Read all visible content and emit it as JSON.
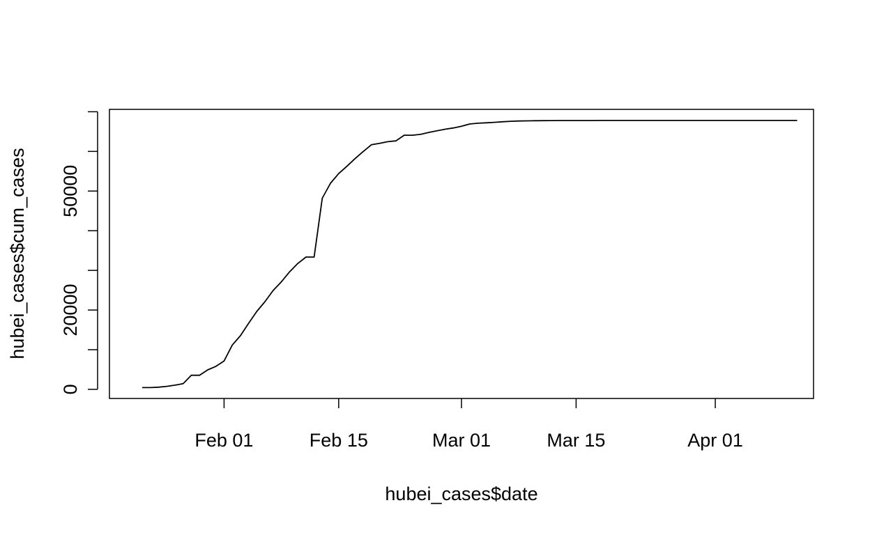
{
  "chart_data": {
    "type": "line",
    "title": "",
    "xlabel": "hubei_cases$date",
    "ylabel": "hubei_cases$cum_cases",
    "x_tick_labels": [
      "Feb 01",
      "Feb 15",
      "Mar 01",
      "Mar 15",
      "Apr 01"
    ],
    "y_tick_labels": [
      "0",
      "20000",
      "50000"
    ],
    "x_ticks": [
      "2020-02-01",
      "2020-02-15",
      "2020-03-01",
      "2020-03-15",
      "2020-04-01"
    ],
    "y_ticks": [
      0,
      10000,
      20000,
      30000,
      40000,
      50000,
      60000,
      70000
    ],
    "y_labeled_ticks": [
      0,
      20000,
      50000
    ],
    "xlim": [
      "2020-01-18",
      "2020-04-13"
    ],
    "ylim": [
      -2300,
      70600
    ],
    "grid": false,
    "line_color": "#000000",
    "series": [
      {
        "x": [
          "2020-01-22",
          "2020-01-23",
          "2020-01-24",
          "2020-01-25",
          "2020-01-26",
          "2020-01-27",
          "2020-01-28",
          "2020-01-29",
          "2020-01-30",
          "2020-01-31",
          "2020-02-01",
          "2020-02-02",
          "2020-02-03",
          "2020-02-04",
          "2020-02-05",
          "2020-02-06",
          "2020-02-07",
          "2020-02-08",
          "2020-02-09",
          "2020-02-10",
          "2020-02-11",
          "2020-02-12",
          "2020-02-13",
          "2020-02-14",
          "2020-02-15",
          "2020-02-16",
          "2020-02-17",
          "2020-02-18",
          "2020-02-19",
          "2020-02-20",
          "2020-02-21",
          "2020-02-22",
          "2020-02-23",
          "2020-02-24",
          "2020-02-25",
          "2020-02-26",
          "2020-02-27",
          "2020-02-28",
          "2020-02-29",
          "2020-03-01",
          "2020-03-02",
          "2020-03-03",
          "2020-03-04",
          "2020-03-05",
          "2020-03-06",
          "2020-03-07",
          "2020-03-08",
          "2020-03-09",
          "2020-03-10",
          "2020-03-11",
          "2020-03-12",
          "2020-03-13",
          "2020-03-14",
          "2020-03-15",
          "2020-03-16",
          "2020-03-17",
          "2020-03-18",
          "2020-03-19",
          "2020-03-20",
          "2020-03-21",
          "2020-03-22",
          "2020-03-23",
          "2020-03-24",
          "2020-03-25",
          "2020-03-26",
          "2020-03-27",
          "2020-03-28",
          "2020-03-29",
          "2020-03-30",
          "2020-03-31",
          "2020-04-01",
          "2020-04-02",
          "2020-04-03",
          "2020-04-04",
          "2020-04-05",
          "2020-04-06",
          "2020-04-07",
          "2020-04-08",
          "2020-04-09",
          "2020-04-10",
          "2020-04-11"
        ],
        "values": [
          444,
          444,
          549,
          761,
          1058,
          1423,
          3554,
          3554,
          4903,
          5806,
          7153,
          11177,
          13522,
          16678,
          19665,
          22112,
          24953,
          27100,
          29631,
          31728,
          33366,
          33366,
          48206,
          51986,
          54406,
          56249,
          58182,
          59989,
          61682,
          62031,
          62442,
          62662,
          64084,
          64084,
          64287,
          64786,
          65187,
          65596,
          65914,
          66337,
          66907,
          67103,
          67217,
          67332,
          67466,
          67592,
          67666,
          67707,
          67743,
          67760,
          67773,
          67781,
          67786,
          67790,
          67794,
          67798,
          67799,
          67800,
          67800,
          67800,
          67800,
          67800,
          67801,
          67801,
          67801,
          67801,
          67801,
          67801,
          67801,
          67801,
          67802,
          67802,
          67802,
          67802,
          67803,
          67803,
          67803,
          67803,
          67803,
          67803,
          67803
        ]
      }
    ]
  }
}
